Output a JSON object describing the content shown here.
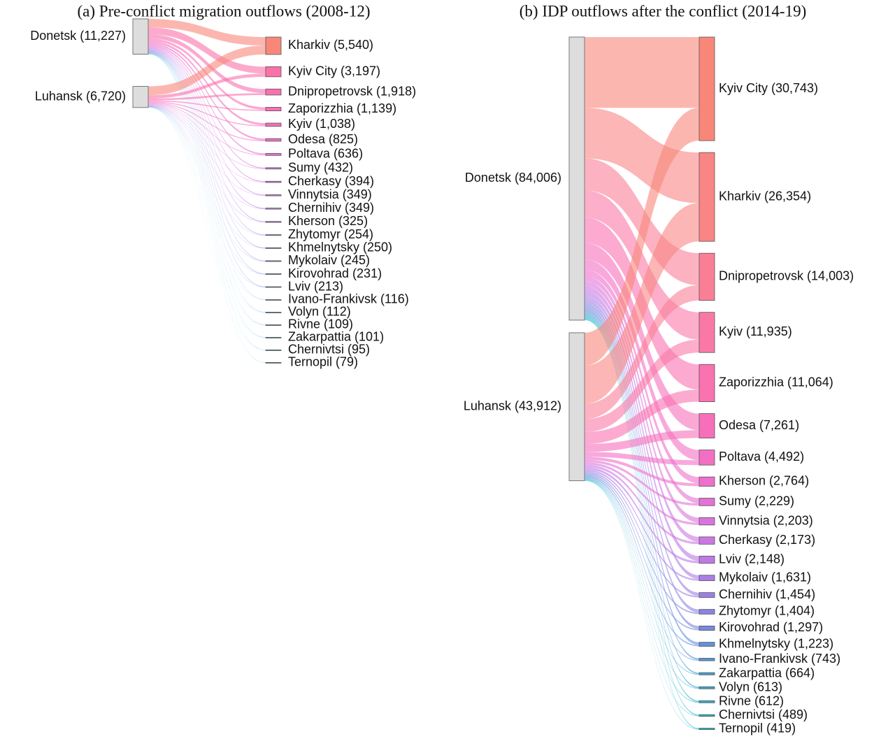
{
  "chart_data": [
    {
      "type": "sankey",
      "title": "(a) Pre-conflict migration outflows (2008-12)",
      "sources": {
        "labels": [
          "Donetsk (11,227)",
          "Luhansk (6,720)"
        ],
        "values": [
          11227,
          6720
        ]
      },
      "targets": {
        "labels": [
          "Kharkiv (5,540)",
          "Kyiv City (3,197)",
          "Dnipropetrovsk (1,918)",
          "Zaporizzhia (1,139)",
          "Kyiv (1,038)",
          "Odesa (825)",
          "Poltava (636)",
          "Sumy (432)",
          "Cherkasy (394)",
          "Vinnytsia (349)",
          "Chernihiv (349)",
          "Kherson (325)",
          "Zhytomyr (254)",
          "Khmelnytsky (250)",
          "Mykolaiv (245)",
          "Kirovohrad (231)",
          "Lviv (213)",
          "Ivano-Frankivsk (116)",
          "Volyn (112)",
          "Rivne (109)",
          "Zakarpattia (101)",
          "Chernivtsi (95)",
          "Ternopil (79)"
        ],
        "values": [
          5540,
          3197,
          1918,
          1139,
          1038,
          825,
          636,
          432,
          394,
          349,
          349,
          325,
          254,
          250,
          245,
          231,
          213,
          116,
          112,
          109,
          101,
          95,
          79
        ]
      },
      "flows": [
        [
          2700,
          2200,
          1318,
          782,
          713,
          567,
          437,
          297,
          271,
          240,
          240,
          223,
          174,
          172,
          168,
          159,
          146,
          80,
          77,
          75,
          69,
          65,
          54
        ],
        [
          2840,
          997,
          600,
          357,
          325,
          258,
          199,
          135,
          123,
          109,
          109,
          102,
          80,
          78,
          77,
          72,
          67,
          36,
          35,
          34,
          32,
          30,
          25
        ]
      ],
      "source_color": "#dddddd",
      "colors": [
        "#f8877a",
        "#fa72a8",
        "#f870b0",
        "#fa6fb8",
        "#f56fc0",
        "#f06fc8",
        "#ea70d0",
        "#e072d8",
        "#d575df",
        "#c878e4",
        "#b97be6",
        "#a97de6",
        "#9a7fe4",
        "#8b82e2",
        "#7b86e0",
        "#6b8ce0",
        "#5a93de",
        "#4a9ada",
        "#3ca2d6",
        "#31a9d2",
        "#28b0cf",
        "#22b5cc",
        "#20b8c8"
      ]
    },
    {
      "type": "sankey",
      "title": "(b) IDP outflows after the conflict (2014-19)",
      "sources": {
        "labels": [
          "Donetsk (84,006)",
          "Luhansk (43,912)"
        ],
        "values": [
          84006,
          43912
        ]
      },
      "targets": {
        "labels": [
          "Kyiv City (30,743)",
          "Kharkiv (26,354)",
          "Dnipropetrovsk (14,003)",
          "Kyiv (11,935)",
          "Zaporizzhia (11,064)",
          "Odesa (7,261)",
          "Poltava (4,492)",
          "Kherson (2,764)",
          "Sumy (2,229)",
          "Vinnytsia (2,203)",
          "Cherkasy (2,173)",
          "Lviv (2,148)",
          "Mykolaiv (1,631)",
          "Chernihiv (1,454)",
          "Zhytomyr (1,404)",
          "Kirovohrad (1,297)",
          "Khmelnytsky (1,223)",
          "Ivano-Frankivsk (743)",
          "Zakarpattia (664)",
          "Volyn (613)",
          "Rivne (612)",
          "Chernivtsi (489)",
          "Ternopil (419)"
        ],
        "values": [
          30743,
          26354,
          14003,
          11935,
          11064,
          7261,
          4492,
          2764,
          2229,
          2203,
          2173,
          2148,
          1631,
          1454,
          1404,
          1297,
          1223,
          743,
          664,
          613,
          612,
          489,
          419
        ]
      },
      "flows": [
        [
          21000,
          15000,
          9483,
          8092,
          7501,
          4923,
          3046,
          1874,
          1511,
          1494,
          1473,
          1456,
          1106,
          986,
          952,
          879,
          829,
          504,
          450,
          416,
          415,
          332,
          284
        ],
        [
          9743,
          11354,
          4520,
          3843,
          3563,
          2338,
          1446,
          890,
          718,
          709,
          700,
          692,
          525,
          468,
          452,
          418,
          394,
          239,
          214,
          197,
          197,
          157,
          135
        ]
      ],
      "source_color": "#dddddd",
      "colors": [
        "#f8877a",
        "#f98584",
        "#fa7f96",
        "#fa78a6",
        "#fa72b0",
        "#f76fbb",
        "#f36fc4",
        "#ee6fcc",
        "#e571d4",
        "#da74dc",
        "#cd77e2",
        "#bd7ae5",
        "#ad7de6",
        "#9c80e4",
        "#8b83e2",
        "#7889e0",
        "#6590de",
        "#5298da",
        "#42a0d6",
        "#35a8d2",
        "#2aafcf",
        "#23b4cc",
        "#20b8c8"
      ]
    }
  ]
}
